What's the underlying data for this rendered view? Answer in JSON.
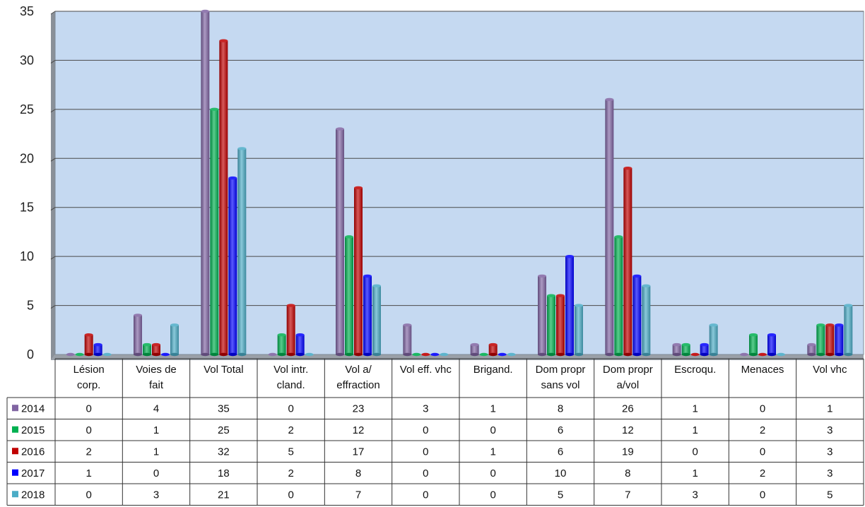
{
  "chart_data": {
    "type": "bar",
    "categories": [
      [
        "Lésion",
        "corp."
      ],
      [
        "Voies de",
        "fait"
      ],
      [
        "Vol Total"
      ],
      [
        "Vol intr.",
        "cland."
      ],
      [
        "Vol a/",
        "effraction"
      ],
      [
        "Vol eff. vhc"
      ],
      [
        "Brigand."
      ],
      [
        "Dom propr",
        "sans vol"
      ],
      [
        "Dom propr",
        "a/vol"
      ],
      [
        "Escroqu."
      ],
      [
        "Menaces"
      ],
      [
        "Vol vhc"
      ]
    ],
    "series": [
      {
        "name": "2014",
        "color": "#8064a2",
        "values": [
          0,
          4,
          35,
          0,
          23,
          3,
          1,
          8,
          26,
          1,
          0,
          1
        ]
      },
      {
        "name": "2015",
        "color": "#00b050",
        "values": [
          0,
          1,
          25,
          2,
          12,
          0,
          0,
          6,
          12,
          1,
          2,
          3
        ]
      },
      {
        "name": "2016",
        "color": "#c00000",
        "values": [
          2,
          1,
          32,
          5,
          17,
          0,
          1,
          6,
          19,
          0,
          0,
          3
        ]
      },
      {
        "name": "2017",
        "color": "#0000ff",
        "values": [
          1,
          0,
          18,
          2,
          8,
          0,
          0,
          10,
          8,
          1,
          2,
          3
        ]
      },
      {
        "name": "2018",
        "color": "#4bacc6",
        "values": [
          0,
          3,
          21,
          0,
          7,
          0,
          0,
          5,
          7,
          3,
          0,
          5
        ]
      }
    ],
    "yticks": [
      0,
      5,
      10,
      15,
      20,
      25,
      30,
      35
    ],
    "ylim": [
      0,
      35
    ],
    "grid": true,
    "legend": "data-table-left",
    "plot_background": "#c5d9f1"
  }
}
